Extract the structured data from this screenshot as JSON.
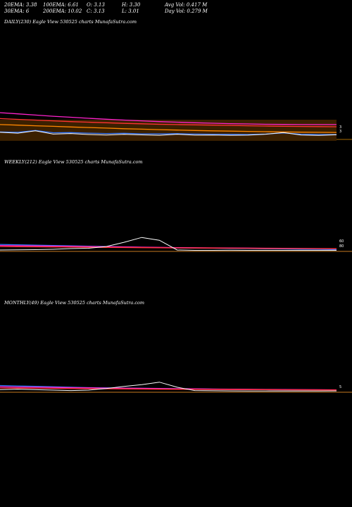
{
  "header": {
    "row1": [
      "20EMA: 3.38",
      "100EMA: 6.61",
      "O: 3.13",
      "H: 3.30",
      "Avg Vol: 0.417 M"
    ],
    "row2": [
      "30EMA: 6",
      "200EMA: 10.02",
      "C: 3.13",
      "L: 3.01",
      "Day Vol: 0.279 M"
    ]
  },
  "chart_data": [
    {
      "type": "line",
      "title": "DAILY(230) Eagle  View  530525 charts MunafaSutra.com",
      "price_labels": [
        "3",
        "3"
      ],
      "background_band_color": "#3b2000",
      "series": [
        {
          "color": "#ff22cc",
          "values": [
            18,
            17.2,
            16.4,
            15.6,
            14.9,
            14.2,
            13.6,
            13.0,
            12.5,
            12.0,
            11.6,
            11.2,
            10.9,
            10.6,
            10.4,
            10.2,
            10.1,
            10.0,
            10.0,
            10.0
          ]
        },
        {
          "color": "#ff3333",
          "values": [
            14,
            13.5,
            13.0,
            12.5,
            12.0,
            11.6,
            11.2,
            10.8,
            10.5,
            10.2,
            10.0,
            9.8,
            9.6,
            9.4,
            9.2,
            9.0,
            8.8,
            8.7,
            8.6,
            8.5
          ]
        },
        {
          "color": "#ff8800",
          "values": [
            10,
            9.6,
            9.2,
            8.8,
            8.4,
            8.0,
            7.6,
            7.2,
            6.9,
            6.6,
            6.3,
            6.0,
            5.8,
            5.6,
            5.4,
            5.2,
            5.0,
            4.9,
            4.8,
            4.7
          ]
        },
        {
          "color": "#3377ff",
          "values": [
            5.0,
            4.8,
            6.0,
            4.5,
            4.6,
            4.2,
            4.0,
            4.1,
            3.8,
            3.7,
            3.9,
            3.6,
            3.5,
            3.4,
            3.3,
            3.6,
            4.4,
            3.5,
            3.3,
            3.2
          ]
        },
        {
          "color": "#ffffff",
          "values": [
            4.8,
            4.2,
            5.8,
            3.6,
            4.0,
            3.3,
            3.0,
            3.4,
            3.1,
            2.8,
            3.5,
            2.9,
            3.0,
            2.8,
            2.9,
            3.5,
            4.6,
            3.0,
            2.7,
            3.13
          ]
        }
      ],
      "ylim": [
        0,
        50
      ]
    },
    {
      "type": "line",
      "title": "WEEKLY(212) Eagle  View  530525 charts MunafaSutra.com",
      "price_labels": [
        "60",
        "80"
      ],
      "series": [
        {
          "color": "#3377ff",
          "values": [
            20,
            19,
            18,
            17,
            16,
            15,
            14,
            13,
            12,
            11,
            10,
            9.5,
            9,
            8.5,
            8,
            7.5,
            7,
            6.5,
            6,
            5.5
          ]
        },
        {
          "color": "#ff22cc",
          "values": [
            17,
            16.4,
            15.8,
            15.2,
            14.6,
            14,
            13.4,
            12.8,
            12.2,
            11.6,
            11,
            10.6,
            10.2,
            9.8,
            9.4,
            9,
            8.6,
            8.3,
            8,
            7.8
          ]
        },
        {
          "color": "#ff3333",
          "values": [
            14,
            13.6,
            13.2,
            12.8,
            12.4,
            12,
            11.6,
            11.2,
            10.8,
            10.4,
            10,
            9.7,
            9.4,
            9.1,
            8.8,
            8.5,
            8.2,
            8,
            7.8,
            7.6
          ]
        },
        {
          "color": "#ffffff",
          "values": [
            4,
            4.5,
            5,
            6,
            8,
            9,
            14,
            26,
            40,
            32,
            4,
            3,
            3,
            3.2,
            3,
            3,
            3,
            3.1,
            3,
            3.13
          ]
        }
      ],
      "ylim": [
        0,
        120
      ]
    },
    {
      "type": "line",
      "title": "MONTHLY(49) Eagle  View  530525 charts MunafaSutra.com",
      "price_labels": [
        "5"
      ],
      "series": [
        {
          "color": "#3377ff",
          "values": [
            16,
            15,
            14,
            13,
            12,
            11,
            10.5,
            10,
            9.5,
            9,
            8.5,
            8,
            7.5,
            7,
            6.5,
            6,
            5.8,
            5.6,
            5.4,
            5.2
          ]
        },
        {
          "color": "#ff22cc",
          "values": [
            13,
            12.5,
            12,
            11.5,
            11,
            10.5,
            10,
            9.6,
            9.2,
            8.8,
            8.4,
            8,
            7.6,
            7.3,
            7,
            6.7,
            6.4,
            6.2,
            6,
            5.8
          ]
        },
        {
          "color": "#ff3333",
          "values": [
            10,
            9.7,
            9.4,
            9.1,
            8.8,
            8.5,
            8.2,
            7.9,
            7.6,
            7.3,
            7,
            6.8,
            6.6,
            6.4,
            6.2,
            6,
            5.8,
            5.6,
            5.4,
            5.3
          ]
        },
        {
          "color": "#ffffff",
          "values": [
            6,
            7,
            6,
            5,
            4,
            5,
            9,
            14,
            18,
            24,
            12,
            4,
            3.5,
            3.2,
            3,
            3,
            3.1,
            3,
            3,
            3.13
          ]
        }
      ],
      "ylim": [
        0,
        100
      ]
    }
  ]
}
